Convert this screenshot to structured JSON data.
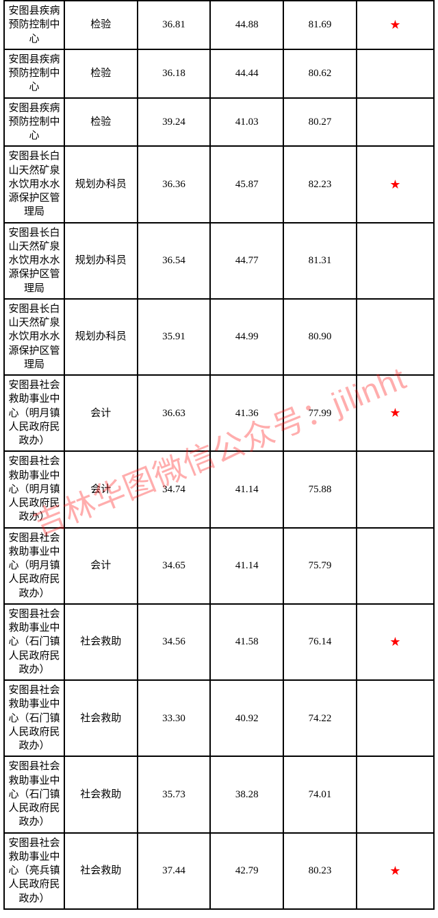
{
  "watermark_text": "吉林华图微信公众号：jilinht",
  "star_symbol": "★",
  "star_color": "#ff0000",
  "border_color": "#000000",
  "text_color": "#000000",
  "background_color": "#ffffff",
  "font_size_cell": 15,
  "font_size_star": 18,
  "watermark_color": "rgba(255,0,0,0.32)",
  "watermark_fontsize": 46,
  "column_widths_pct": [
    14,
    17,
    17,
    17,
    17,
    18
  ],
  "rows": [
    {
      "org": "安图县疾病预防控制中心",
      "position": "检验",
      "score1": "36.81",
      "score2": "44.88",
      "score3": "81.69",
      "starred": true
    },
    {
      "org": "安图县疾病预防控制中心",
      "position": "检验",
      "score1": "36.18",
      "score2": "44.44",
      "score3": "80.62",
      "starred": false
    },
    {
      "org": "安图县疾病预防控制中心",
      "position": "检验",
      "score1": "39.24",
      "score2": "41.03",
      "score3": "80.27",
      "starred": false
    },
    {
      "org": "安图县长白山天然矿泉水饮用水水源保护区管理局",
      "position": "规划办科员",
      "score1": "36.36",
      "score2": "45.87",
      "score3": "82.23",
      "starred": true
    },
    {
      "org": "安图县长白山天然矿泉水饮用水水源保护区管理局",
      "position": "规划办科员",
      "score1": "36.54",
      "score2": "44.77",
      "score3": "81.31",
      "starred": false
    },
    {
      "org": "安图县长白山天然矿泉水饮用水水源保护区管理局",
      "position": "规划办科员",
      "score1": "35.91",
      "score2": "44.99",
      "score3": "80.90",
      "starred": false
    },
    {
      "org": "安图县社会救助事业中心（明月镇人民政府民政办）",
      "position": "会计",
      "score1": "36.63",
      "score2": "41.36",
      "score3": "77.99",
      "starred": true
    },
    {
      "org": "安图县社会救助事业中心（明月镇人民政府民政办）",
      "position": "会计",
      "score1": "34.74",
      "score2": "41.14",
      "score3": "75.88",
      "starred": false
    },
    {
      "org": "安图县社会救助事业中心（明月镇人民政府民政办）",
      "position": "会计",
      "score1": "34.65",
      "score2": "41.14",
      "score3": "75.79",
      "starred": false
    },
    {
      "org": "安图县社会救助事业中心（石门镇人民政府民政办）",
      "position": "社会救助",
      "score1": "34.56",
      "score2": "41.58",
      "score3": "76.14",
      "starred": true
    },
    {
      "org": "安图县社会救助事业中心（石门镇人民政府民政办）",
      "position": "社会救助",
      "score1": "33.30",
      "score2": "40.92",
      "score3": "74.22",
      "starred": false
    },
    {
      "org": "安图县社会救助事业中心（石门镇人民政府民政办）",
      "position": "社会救助",
      "score1": "35.73",
      "score2": "38.28",
      "score3": "74.01",
      "starred": false
    },
    {
      "org": "安图县社会救助事业中心（亮兵镇人民政府民政办）",
      "position": "社会救助",
      "score1": "37.44",
      "score2": "42.79",
      "score3": "80.23",
      "starred": true
    }
  ]
}
